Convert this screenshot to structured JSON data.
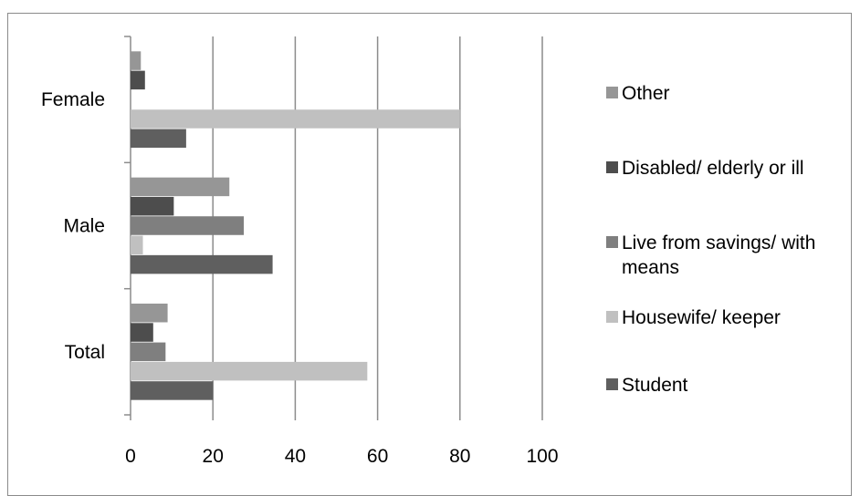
{
  "chart_data": {
    "type": "bar",
    "orientation": "horizontal",
    "categories": [
      "Female",
      "Male",
      "Total"
    ],
    "series": [
      {
        "name": "Other",
        "values": [
          2.5,
          24,
          9
        ],
        "color": "#969696"
      },
      {
        "name": "Disabled/ elderly or ill",
        "values": [
          3.5,
          10.5,
          5.5
        ],
        "color": "#4d4d4d"
      },
      {
        "name": "Live from savings/ with means",
        "values": [
          0,
          27.5,
          8.5
        ],
        "color": "#7f7f7f"
      },
      {
        "name": "Housewife/ keeper",
        "values": [
          80,
          3,
          57.5
        ],
        "color": "#c0c0c0"
      },
      {
        "name": "Student",
        "values": [
          13.5,
          34.5,
          20
        ],
        "color": "#5f5f5f"
      }
    ],
    "xlim": [
      0,
      100
    ],
    "x_ticks": [
      "0",
      "20",
      "40",
      "60",
      "80",
      "100"
    ],
    "grid": true,
    "legend_position": "right",
    "legend_order": [
      "Other",
      "Disabled/ elderly or ill",
      "Live from savings/ with means",
      "Housewife/ keeper",
      "Student"
    ],
    "title": "",
    "xlabel": "",
    "ylabel": ""
  }
}
